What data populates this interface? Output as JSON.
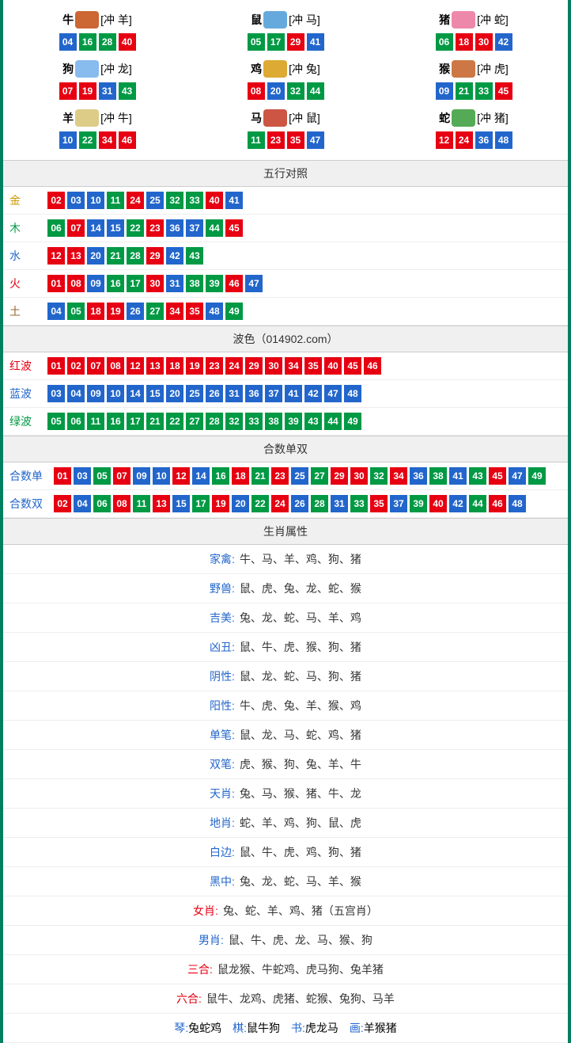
{
  "colors": {
    "red": "#e60012",
    "blue": "#2266cc",
    "green": "#009944",
    "border": "#008060"
  },
  "num_colors": {
    "01": "red",
    "02": "red",
    "03": "blue",
    "04": "blue",
    "05": "green",
    "06": "green",
    "07": "red",
    "08": "red",
    "09": "blue",
    "10": "blue",
    "11": "green",
    "12": "red",
    "13": "red",
    "14": "blue",
    "15": "blue",
    "16": "green",
    "17": "green",
    "18": "red",
    "19": "red",
    "20": "blue",
    "21": "green",
    "22": "green",
    "23": "red",
    "24": "red",
    "25": "blue",
    "26": "blue",
    "27": "green",
    "28": "green",
    "29": "red",
    "30": "red",
    "31": "blue",
    "32": "green",
    "33": "green",
    "34": "red",
    "35": "red",
    "36": "blue",
    "37": "blue",
    "38": "green",
    "39": "green",
    "40": "red",
    "41": "blue",
    "42": "blue",
    "43": "green",
    "44": "green",
    "45": "red",
    "46": "red",
    "47": "blue",
    "48": "blue",
    "49": "green"
  },
  "zodiac_grid": [
    {
      "name": "牛",
      "icon_color": "#cc6633",
      "clash": "[冲 羊]",
      "nums": [
        "04",
        "16",
        "28",
        "40"
      ]
    },
    {
      "name": "鼠",
      "icon_color": "#66aadd",
      "clash": "[冲 马]",
      "nums": [
        "05",
        "17",
        "29",
        "41"
      ]
    },
    {
      "name": "猪",
      "icon_color": "#ee88aa",
      "clash": "[冲 蛇]",
      "nums": [
        "06",
        "18",
        "30",
        "42"
      ]
    },
    {
      "name": "狗",
      "icon_color": "#88bbee",
      "clash": "[冲 龙]",
      "nums": [
        "07",
        "19",
        "31",
        "43"
      ]
    },
    {
      "name": "鸡",
      "icon_color": "#ddaa33",
      "clash": "[冲 兔]",
      "nums": [
        "08",
        "20",
        "32",
        "44"
      ]
    },
    {
      "name": "猴",
      "icon_color": "#cc7744",
      "clash": "[冲 虎]",
      "nums": [
        "09",
        "21",
        "33",
        "45"
      ]
    },
    {
      "name": "羊",
      "icon_color": "#ddcc88",
      "clash": "[冲 牛]",
      "nums": [
        "10",
        "22",
        "34",
        "46"
      ]
    },
    {
      "name": "马",
      "icon_color": "#cc5544",
      "clash": "[冲 鼠]",
      "nums": [
        "11",
        "23",
        "35",
        "47"
      ]
    },
    {
      "name": "蛇",
      "icon_color": "#55aa55",
      "clash": "[冲 猪]",
      "nums": [
        "12",
        "24",
        "36",
        "48"
      ]
    }
  ],
  "wuxing": {
    "header": "五行对照",
    "rows": [
      {
        "label": "金",
        "label_class": "c-gold",
        "nums": [
          "02",
          "03",
          "10",
          "11",
          "24",
          "25",
          "32",
          "33",
          "40",
          "41"
        ]
      },
      {
        "label": "木",
        "label_class": "c-wood",
        "nums": [
          "06",
          "07",
          "14",
          "15",
          "22",
          "23",
          "36",
          "37",
          "44",
          "45"
        ]
      },
      {
        "label": "水",
        "label_class": "c-water",
        "nums": [
          "12",
          "13",
          "20",
          "21",
          "28",
          "29",
          "42",
          "43"
        ]
      },
      {
        "label": "火",
        "label_class": "c-fire",
        "nums": [
          "01",
          "08",
          "09",
          "16",
          "17",
          "30",
          "31",
          "38",
          "39",
          "46",
          "47"
        ]
      },
      {
        "label": "土",
        "label_class": "c-earth",
        "nums": [
          "04",
          "05",
          "18",
          "19",
          "26",
          "27",
          "34",
          "35",
          "48",
          "49"
        ]
      }
    ]
  },
  "bose": {
    "header": "波色（014902.com）",
    "rows": [
      {
        "label": "红波",
        "label_class": "c-red",
        "nums": [
          "01",
          "02",
          "07",
          "08",
          "12",
          "13",
          "18",
          "19",
          "23",
          "24",
          "29",
          "30",
          "34",
          "35",
          "40",
          "45",
          "46"
        ]
      },
      {
        "label": "蓝波",
        "label_class": "c-blue",
        "nums": [
          "03",
          "04",
          "09",
          "10",
          "14",
          "15",
          "20",
          "25",
          "26",
          "31",
          "36",
          "37",
          "41",
          "42",
          "47",
          "48"
        ]
      },
      {
        "label": "绿波",
        "label_class": "c-green",
        "nums": [
          "05",
          "06",
          "11",
          "16",
          "17",
          "21",
          "22",
          "27",
          "28",
          "32",
          "33",
          "38",
          "39",
          "43",
          "44",
          "49"
        ]
      }
    ]
  },
  "heshu": {
    "header": "合数单双",
    "rows": [
      {
        "label": "合数单",
        "label_class": "c-blue",
        "nums": [
          "01",
          "03",
          "05",
          "07",
          "09",
          "10",
          "12",
          "14",
          "16",
          "18",
          "21",
          "23",
          "25",
          "27",
          "29",
          "30",
          "32",
          "34",
          "36",
          "38",
          "41",
          "43",
          "45",
          "47",
          "49"
        ]
      },
      {
        "label": "合数双",
        "label_class": "c-blue",
        "nums": [
          "02",
          "04",
          "06",
          "08",
          "11",
          "13",
          "15",
          "17",
          "19",
          "20",
          "22",
          "24",
          "26",
          "28",
          "31",
          "33",
          "35",
          "37",
          "39",
          "40",
          "42",
          "44",
          "46",
          "48"
        ]
      }
    ]
  },
  "shuxing": {
    "header": "生肖属性",
    "rows": [
      {
        "label": "家禽:",
        "label_class": "c-blue",
        "values": "牛、马、羊、鸡、狗、猪"
      },
      {
        "label": "野兽:",
        "label_class": "c-blue",
        "values": "鼠、虎、兔、龙、蛇、猴"
      },
      {
        "label": "吉美:",
        "label_class": "c-blue",
        "values": "兔、龙、蛇、马、羊、鸡"
      },
      {
        "label": "凶丑:",
        "label_class": "c-blue",
        "values": "鼠、牛、虎、猴、狗、猪"
      },
      {
        "label": "阴性:",
        "label_class": "c-blue",
        "values": "鼠、龙、蛇、马、狗、猪"
      },
      {
        "label": "阳性:",
        "label_class": "c-blue",
        "values": "牛、虎、兔、羊、猴、鸡"
      },
      {
        "label": "单笔:",
        "label_class": "c-blue",
        "values": "鼠、龙、马、蛇、鸡、猪"
      },
      {
        "label": "双笔:",
        "label_class": "c-blue",
        "values": "虎、猴、狗、兔、羊、牛"
      },
      {
        "label": "天肖:",
        "label_class": "c-blue",
        "values": "兔、马、猴、猪、牛、龙"
      },
      {
        "label": "地肖:",
        "label_class": "c-blue",
        "values": "蛇、羊、鸡、狗、鼠、虎"
      },
      {
        "label": "白边:",
        "label_class": "c-blue",
        "values": "鼠、牛、虎、鸡、狗、猪"
      },
      {
        "label": "黑中:",
        "label_class": "c-blue",
        "values": "兔、龙、蛇、马、羊、猴"
      },
      {
        "label": "女肖:",
        "label_class": "c-red",
        "values": "兔、蛇、羊、鸡、猪（五宫肖）"
      },
      {
        "label": "男肖:",
        "label_class": "c-blue",
        "values": "鼠、牛、虎、龙、马、猴、狗"
      },
      {
        "label": "三合:",
        "label_class": "c-red",
        "values": "鼠龙猴、牛蛇鸡、虎马狗、兔羊猪"
      },
      {
        "label": "六合:",
        "label_class": "c-red",
        "values": "鼠牛、龙鸡、虎猪、蛇猴、兔狗、马羊"
      }
    ],
    "bottom": [
      {
        "label": "琴:",
        "label_class": "c-blue",
        "values": "兔蛇鸡"
      },
      {
        "label": "棋:",
        "label_class": "c-blue",
        "values": "鼠牛狗"
      },
      {
        "label": "书:",
        "label_class": "c-blue",
        "values": "虎龙马"
      },
      {
        "label": "画:",
        "label_class": "c-blue",
        "values": "羊猴猪"
      }
    ]
  }
}
